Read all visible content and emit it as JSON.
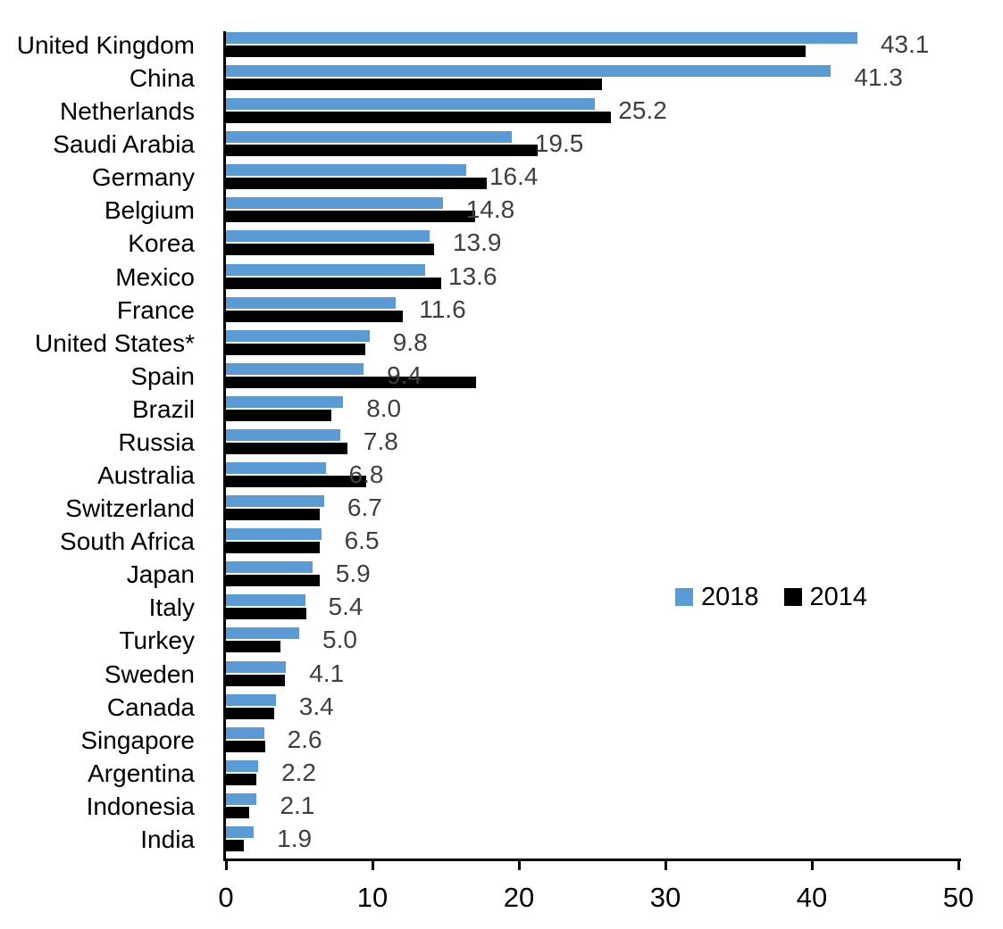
{
  "figure": {
    "background_color": "#FFFFFF",
    "axis_color": "#000000",
    "value_label_color": "#3F3F3F",
    "category_label_color": "#000000"
  },
  "legend": {
    "items": [
      {
        "label": "2018",
        "color": "#5B9BD5"
      },
      {
        "label": "2014",
        "color": "#000000"
      }
    ]
  },
  "chart_data": {
    "type": "bar",
    "orientation": "horizontal",
    "title": "",
    "xlabel": "",
    "ylabel": "",
    "xlim": [
      0,
      50
    ],
    "x_ticks": [
      0,
      10,
      20,
      30,
      40,
      50
    ],
    "grid": false,
    "legend_position": "center-right",
    "data_labels_series": "2018",
    "data_labels_decimals": 1,
    "categories": [
      "United Kingdom",
      "China",
      "Netherlands",
      "Saudi Arabia",
      "Germany",
      "Belgium",
      "Korea",
      "Mexico",
      "France",
      "United States*",
      "Spain",
      "Brazil",
      "Russia",
      "Australia",
      "Switzerland",
      "South Africa",
      "Japan",
      "Italy",
      "Turkey",
      "Sweden",
      "Canada",
      "Singapore",
      "Argentina",
      "Indonesia",
      "India"
    ],
    "series": [
      {
        "name": "2018",
        "color": "#5B9BD5",
        "labels_visible": true,
        "values": [
          43.1,
          41.3,
          25.2,
          19.5,
          16.4,
          14.8,
          13.9,
          13.6,
          11.6,
          9.8,
          9.4,
          8.0,
          7.8,
          6.8,
          6.7,
          6.5,
          5.9,
          5.4,
          5.0,
          4.1,
          3.4,
          2.6,
          2.2,
          2.1,
          1.9
        ]
      },
      {
        "name": "2014",
        "color": "#000000",
        "labels_visible": false,
        "values": [
          39.6,
          25.7,
          26.3,
          21.3,
          17.8,
          17.0,
          14.2,
          14.7,
          12.1,
          9.5,
          17.1,
          7.2,
          8.3,
          9.6,
          6.4,
          6.4,
          6.4,
          5.5,
          3.7,
          4.0,
          3.3,
          2.7,
          2.1,
          1.6,
          1.2
        ]
      }
    ]
  }
}
